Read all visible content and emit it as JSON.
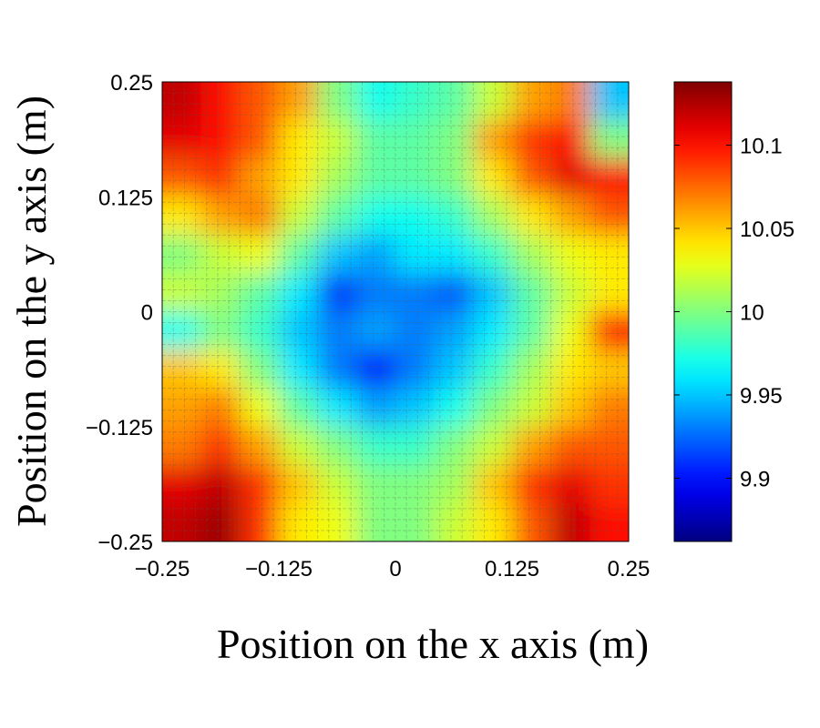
{
  "chart_data": {
    "type": "heatmap",
    "title": "",
    "xlabel": "Position on the x axis (m)",
    "ylabel": "Position on the y axis (m)",
    "xlim": [
      -0.25,
      0.25
    ],
    "ylim": [
      -0.25,
      0.25
    ],
    "xticks": [
      "-0.25",
      "-0.125",
      "0",
      "0.125",
      "0.25"
    ],
    "yticks": [
      "0.25",
      "0.125",
      "0",
      "-0.125",
      "-0.25"
    ],
    "colorbar": {
      "range": [
        9.862,
        10.138
      ],
      "ticks": [
        "10.1",
        "10.05",
        "10",
        "9.95",
        "9.9"
      ],
      "tick_values": [
        10.1,
        10.05,
        10.0,
        9.95,
        9.9
      ],
      "colormap": "jet"
    },
    "grid_rows_top_to_bottom": [
      [
        10.12,
        10.1,
        10.08,
        10.06,
        10.0,
        9.97,
        9.98,
        9.99,
        10.02,
        10.06,
        10.07,
        9.95
      ],
      [
        10.11,
        10.1,
        10.08,
        10.04,
        10.02,
        9.99,
        9.99,
        10.0,
        10.06,
        10.09,
        10.1,
        10.0
      ],
      [
        10.08,
        10.09,
        10.06,
        10.04,
        10.01,
        9.99,
        9.99,
        10.0,
        10.04,
        10.08,
        10.11,
        10.1
      ],
      [
        10.04,
        10.06,
        10.07,
        10.02,
        9.99,
        9.97,
        9.97,
        9.98,
        10.01,
        10.04,
        10.06,
        10.08
      ],
      [
        10.0,
        10.02,
        10.03,
        9.99,
        9.95,
        9.94,
        9.96,
        9.96,
        9.98,
        10.01,
        10.03,
        10.04
      ],
      [
        10.02,
        10.01,
        9.99,
        9.96,
        9.91,
        9.93,
        9.93,
        9.92,
        9.95,
        9.99,
        10.02,
        10.04
      ],
      [
        9.97,
        10.0,
        9.98,
        9.95,
        9.93,
        9.94,
        9.93,
        9.94,
        9.96,
        9.99,
        10.03,
        10.1
      ],
      [
        10.05,
        10.04,
        10.0,
        9.96,
        9.93,
        9.9,
        9.93,
        9.95,
        9.98,
        10.01,
        10.04,
        10.05
      ],
      [
        10.06,
        10.07,
        10.03,
        9.99,
        9.96,
        9.94,
        9.95,
        9.97,
        10.0,
        10.02,
        10.05,
        10.07
      ],
      [
        10.07,
        10.09,
        10.06,
        10.02,
        10.0,
        9.98,
        9.98,
        10.0,
        10.02,
        10.06,
        10.08,
        10.08
      ],
      [
        10.11,
        10.12,
        10.09,
        10.05,
        10.02,
        10.0,
        10.0,
        10.01,
        10.05,
        10.09,
        10.11,
        10.09
      ],
      [
        10.12,
        10.13,
        10.09,
        10.04,
        10.03,
        10.0,
        10.0,
        10.02,
        10.04,
        10.08,
        10.12,
        10.1
      ]
    ]
  }
}
